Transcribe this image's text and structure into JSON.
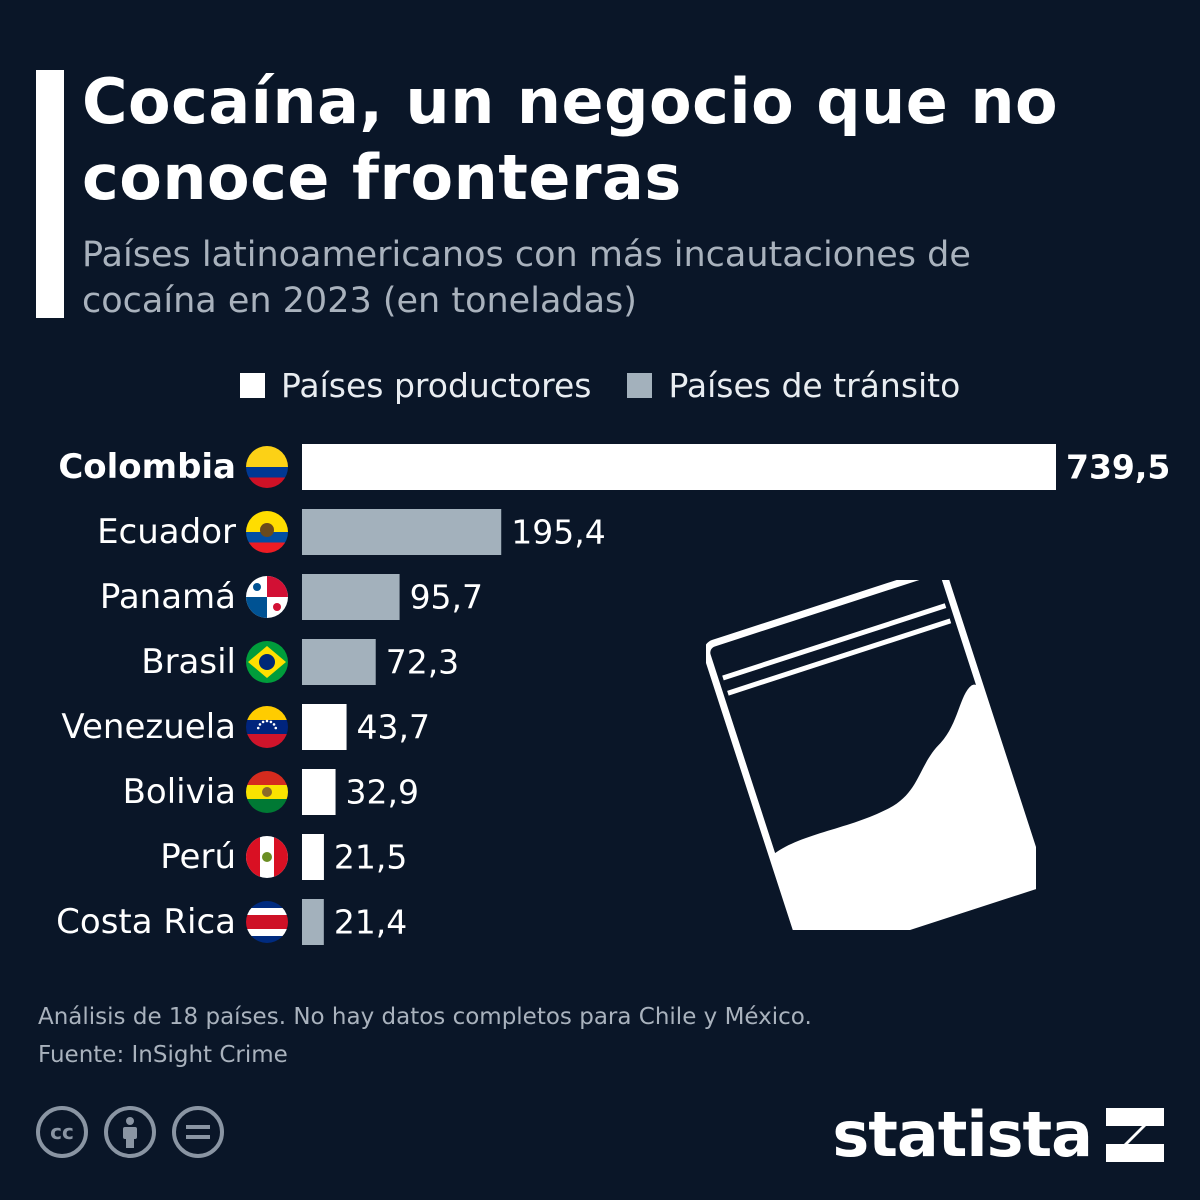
{
  "title": "Cocaína, un negocio que no conoce fronteras",
  "subtitle": "Países latinoamericanos con más incautaciones de cocaína en 2023 (en toneladas)",
  "legend": [
    {
      "label": "Países productores",
      "color": "#ffffff"
    },
    {
      "label": "Países de tránsito",
      "color": "#a3b1bc"
    }
  ],
  "chart_data": {
    "type": "bar",
    "orientation": "horizontal",
    "title": "Cocaína, un negocio que no conoce fronteras",
    "subtitle": "Países latinoamericanos con más incautaciones de cocaína en 2023 (en toneladas)",
    "categories": [
      "Colombia",
      "Ecuador",
      "Panamá",
      "Brasil",
      "Venezuela",
      "Bolivia",
      "Perú",
      "Costa Rica"
    ],
    "values": [
      739.5,
      195.4,
      95.7,
      72.3,
      43.7,
      32.9,
      21.5,
      21.4
    ],
    "value_labels": [
      "739,5",
      "195,4",
      "95,7",
      "72,3",
      "43,7",
      "32,9",
      "21,5",
      "21,4"
    ],
    "group": [
      "Países productores",
      "Países de tránsito",
      "Países de tránsito",
      "Países de tránsito",
      "Países productores",
      "Países productores",
      "Países productores",
      "Países de tránsito"
    ],
    "colors": {
      "Países productores": "#ffffff",
      "Países de tránsito": "#a3b1bc"
    },
    "flags": [
      "colombia-flag-icon",
      "ecuador-flag-icon",
      "panama-flag-icon",
      "brazil-flag-icon",
      "venezuela-flag-icon",
      "bolivia-flag-icon",
      "peru-flag-icon",
      "costa-rica-flag-icon"
    ],
    "highlight": "Colombia",
    "xlim": [
      0,
      739.5
    ],
    "grid": false,
    "legend_position": "top"
  },
  "footer": {
    "note": "Análisis de 18 países. No hay datos completos para Chile y México.",
    "source": "Fuente: InSight Crime",
    "brand": "statista"
  }
}
